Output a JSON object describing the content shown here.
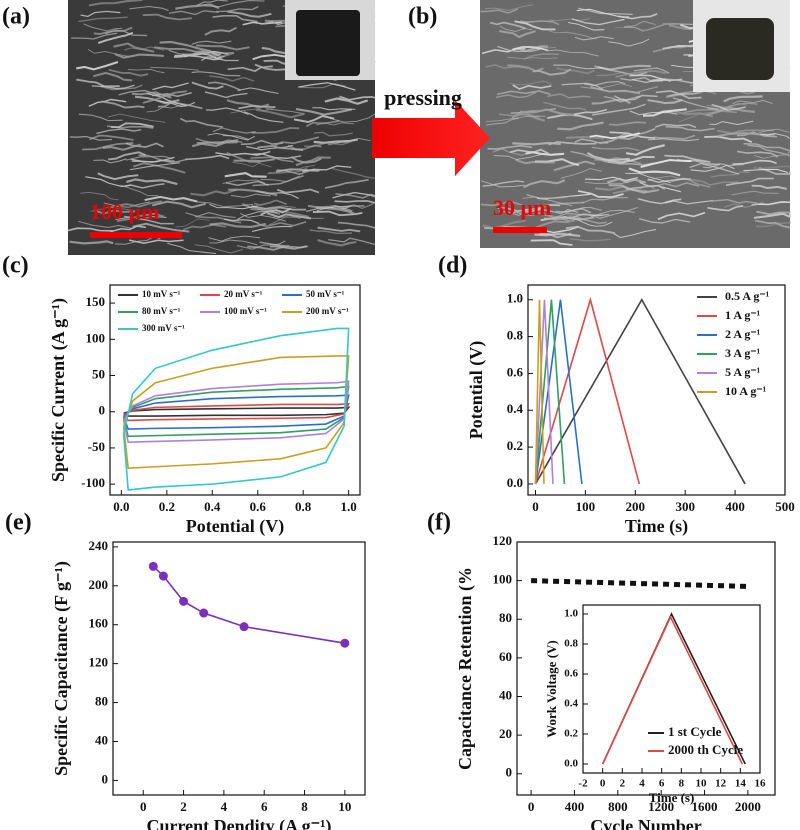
{
  "images": [
    {
      "label": "(a)",
      "scale_bar": "100 μm"
    },
    {
      "label": "(b)",
      "scale_bar": "30 μm"
    }
  ],
  "arrow_label": "pressing",
  "chart_data": [
    {
      "type": "line",
      "label": "(c)",
      "x_label": "Potential (V)",
      "y_label": "Specific Current (A g⁻¹)",
      "xlim": [
        -0.05,
        1.05
      ],
      "ylim": [
        -115,
        175
      ],
      "xticks": [
        {
          "value": 0,
          "label": "0.0"
        },
        0.2,
        0.4,
        0.6,
        0.8,
        {
          "value": 1,
          "label": "1.0"
        }
      ],
      "yticks": [
        -100,
        -50,
        0,
        50,
        100,
        150
      ],
      "legend": "top",
      "x": [
        0.01,
        0.05,
        0.15,
        0.4,
        0.7,
        0.95,
        1.0,
        0.98,
        0.9,
        0.7,
        0.4,
        0.15,
        0.03,
        0.01
      ],
      "series": [
        {
          "name": "10 mV s⁻¹",
          "color": "#333333",
          "values": [
            -2,
            1,
            3,
            4,
            5,
            5,
            6,
            -2,
            -4,
            -5,
            -5,
            -6,
            -6,
            -2
          ]
        },
        {
          "name": "20 mV s⁻¹",
          "color": "#e04848",
          "values": [
            -4,
            2,
            6,
            8,
            10,
            10,
            11,
            -3,
            -8,
            -9,
            -10,
            -11,
            -12,
            -4
          ]
        },
        {
          "name": "50 mV s⁻¹",
          "color": "#2a6fd0",
          "values": [
            -7,
            4,
            12,
            18,
            21,
            22,
            23,
            -6,
            -17,
            -20,
            -22,
            -23,
            -24,
            -7
          ]
        },
        {
          "name": "80 mV s⁻¹",
          "color": "#2ea060",
          "values": [
            -10,
            6,
            18,
            27,
            31,
            33,
            35,
            -8,
            -24,
            -29,
            -31,
            -33,
            -34,
            -10
          ]
        },
        {
          "name": "100 mV s⁻¹",
          "color": "#b07fe0",
          "values": [
            -12,
            8,
            22,
            32,
            38,
            40,
            42,
            -10,
            -30,
            -36,
            -39,
            -41,
            -42,
            -12
          ]
        },
        {
          "name": "200 mV s⁻¹",
          "color": "#c8a020",
          "values": [
            -20,
            15,
            40,
            60,
            75,
            77,
            77,
            -15,
            -50,
            -65,
            -72,
            -76,
            -78,
            -20
          ]
        },
        {
          "name": "300 mV s⁻¹",
          "color": "#30c8c8",
          "values": [
            -30,
            25,
            60,
            85,
            105,
            115,
            115,
            -20,
            -70,
            -90,
            -100,
            -104,
            -108,
            -30
          ]
        }
      ]
    },
    {
      "type": "line",
      "label": "(d)",
      "x_label": "Time (s)",
      "y_label": "Potential (V)",
      "xlim": [
        -15,
        500
      ],
      "ylim": [
        -0.06,
        1.08
      ],
      "xticks": [
        0,
        100,
        200,
        300,
        400,
        500
      ],
      "yticks": [
        {
          "value": 0,
          "label": "0.0"
        },
        0.2,
        0.4,
        0.6,
        0.8,
        {
          "value": 1,
          "label": "1.0"
        }
      ],
      "legend": "right",
      "series": [
        {
          "name": "0.5 A g⁻¹",
          "color": "#444444",
          "x": [
            0,
            213,
            420
          ],
          "values": [
            0,
            1,
            0
          ]
        },
        {
          "name": "1 A g⁻¹",
          "color": "#e04848",
          "x": [
            0,
            110,
            208
          ],
          "values": [
            0,
            1,
            0
          ]
        },
        {
          "name": "2 A g⁻¹",
          "color": "#2a6fd0",
          "x": [
            0,
            50,
            93
          ],
          "values": [
            0,
            1,
            0
          ]
        },
        {
          "name": "3 A g⁻¹",
          "color": "#2ea060",
          "x": [
            0,
            32,
            58
          ],
          "values": [
            0,
            1,
            0
          ]
        },
        {
          "name": "5 A g⁻¹",
          "color": "#b07fe0",
          "x": [
            0,
            18,
            35
          ],
          "values": [
            0,
            1,
            0
          ]
        },
        {
          "name": "10 A g⁻¹",
          "color": "#c8a020",
          "x": [
            0,
            8,
            17
          ],
          "values": [
            0,
            1,
            0
          ]
        }
      ]
    },
    {
      "type": "line",
      "label": "(e)",
      "x_label": "Current Dendity (A g⁻¹)",
      "y_label": "Specific Capacitance (F g⁻¹)",
      "xlim": [
        -1.5,
        11
      ],
      "ylim": [
        -15,
        245
      ],
      "markers": true,
      "xticks": [
        0,
        2,
        4,
        6,
        8,
        10
      ],
      "yticks": [
        0,
        40,
        80,
        120,
        160,
        200,
        240
      ],
      "series": [
        {
          "color": "#7b2fbe",
          "x": [
            0.5,
            1,
            2,
            3,
            5,
            10
          ],
          "values": [
            220,
            210,
            184,
            172,
            158,
            141
          ]
        }
      ]
    },
    {
      "type": "line",
      "label": "(f)",
      "x_label": "Cycle Number",
      "y_label": "Capacitance Retention (%",
      "xlim": [
        -130,
        2250
      ],
      "ylim": [
        -11,
        120
      ],
      "line_style": "dotted",
      "xticks": [
        0,
        400,
        800,
        1200,
        1600,
        2000
      ],
      "yticks": [
        0,
        20,
        40,
        60,
        80,
        100,
        120
      ],
      "series": [
        {
          "color": "#111111",
          "x": [
            0,
            200,
            400,
            600,
            800,
            1000,
            1200,
            1400,
            1600,
            1800,
            2000
          ],
          "values": [
            100,
            99.7,
            99.4,
            99.1,
            98.8,
            98.5,
            98.2,
            97.9,
            97.6,
            97.3,
            97
          ]
        }
      ],
      "inset": {
        "type": "line",
        "x_label": "Time (s)",
        "y_label": "Work Voltage (V)",
        "xlim": [
          -2,
          16
        ],
        "ylim": [
          -0.06,
          1.06
        ],
        "legend": "bottom-right",
        "xticks": [
          -2,
          0,
          2,
          4,
          6,
          8,
          10,
          12,
          14,
          16
        ],
        "yticks": [
          {
            "value": 0,
            "label": "0.0"
          },
          0.2,
          0.4,
          0.6,
          0.8,
          {
            "value": 1,
            "label": "1.0"
          }
        ],
        "series": [
          {
            "name": "1 st Cycle",
            "color": "#222222",
            "x": [
              0,
              7,
              14.5
            ],
            "values": [
              0,
              1,
              0
            ]
          },
          {
            "name": "2000 th Cycle",
            "color": "#e04848",
            "x": [
              0,
              6.9,
              14.2
            ],
            "values": [
              0,
              0.98,
              0
            ]
          }
        ]
      }
    }
  ]
}
